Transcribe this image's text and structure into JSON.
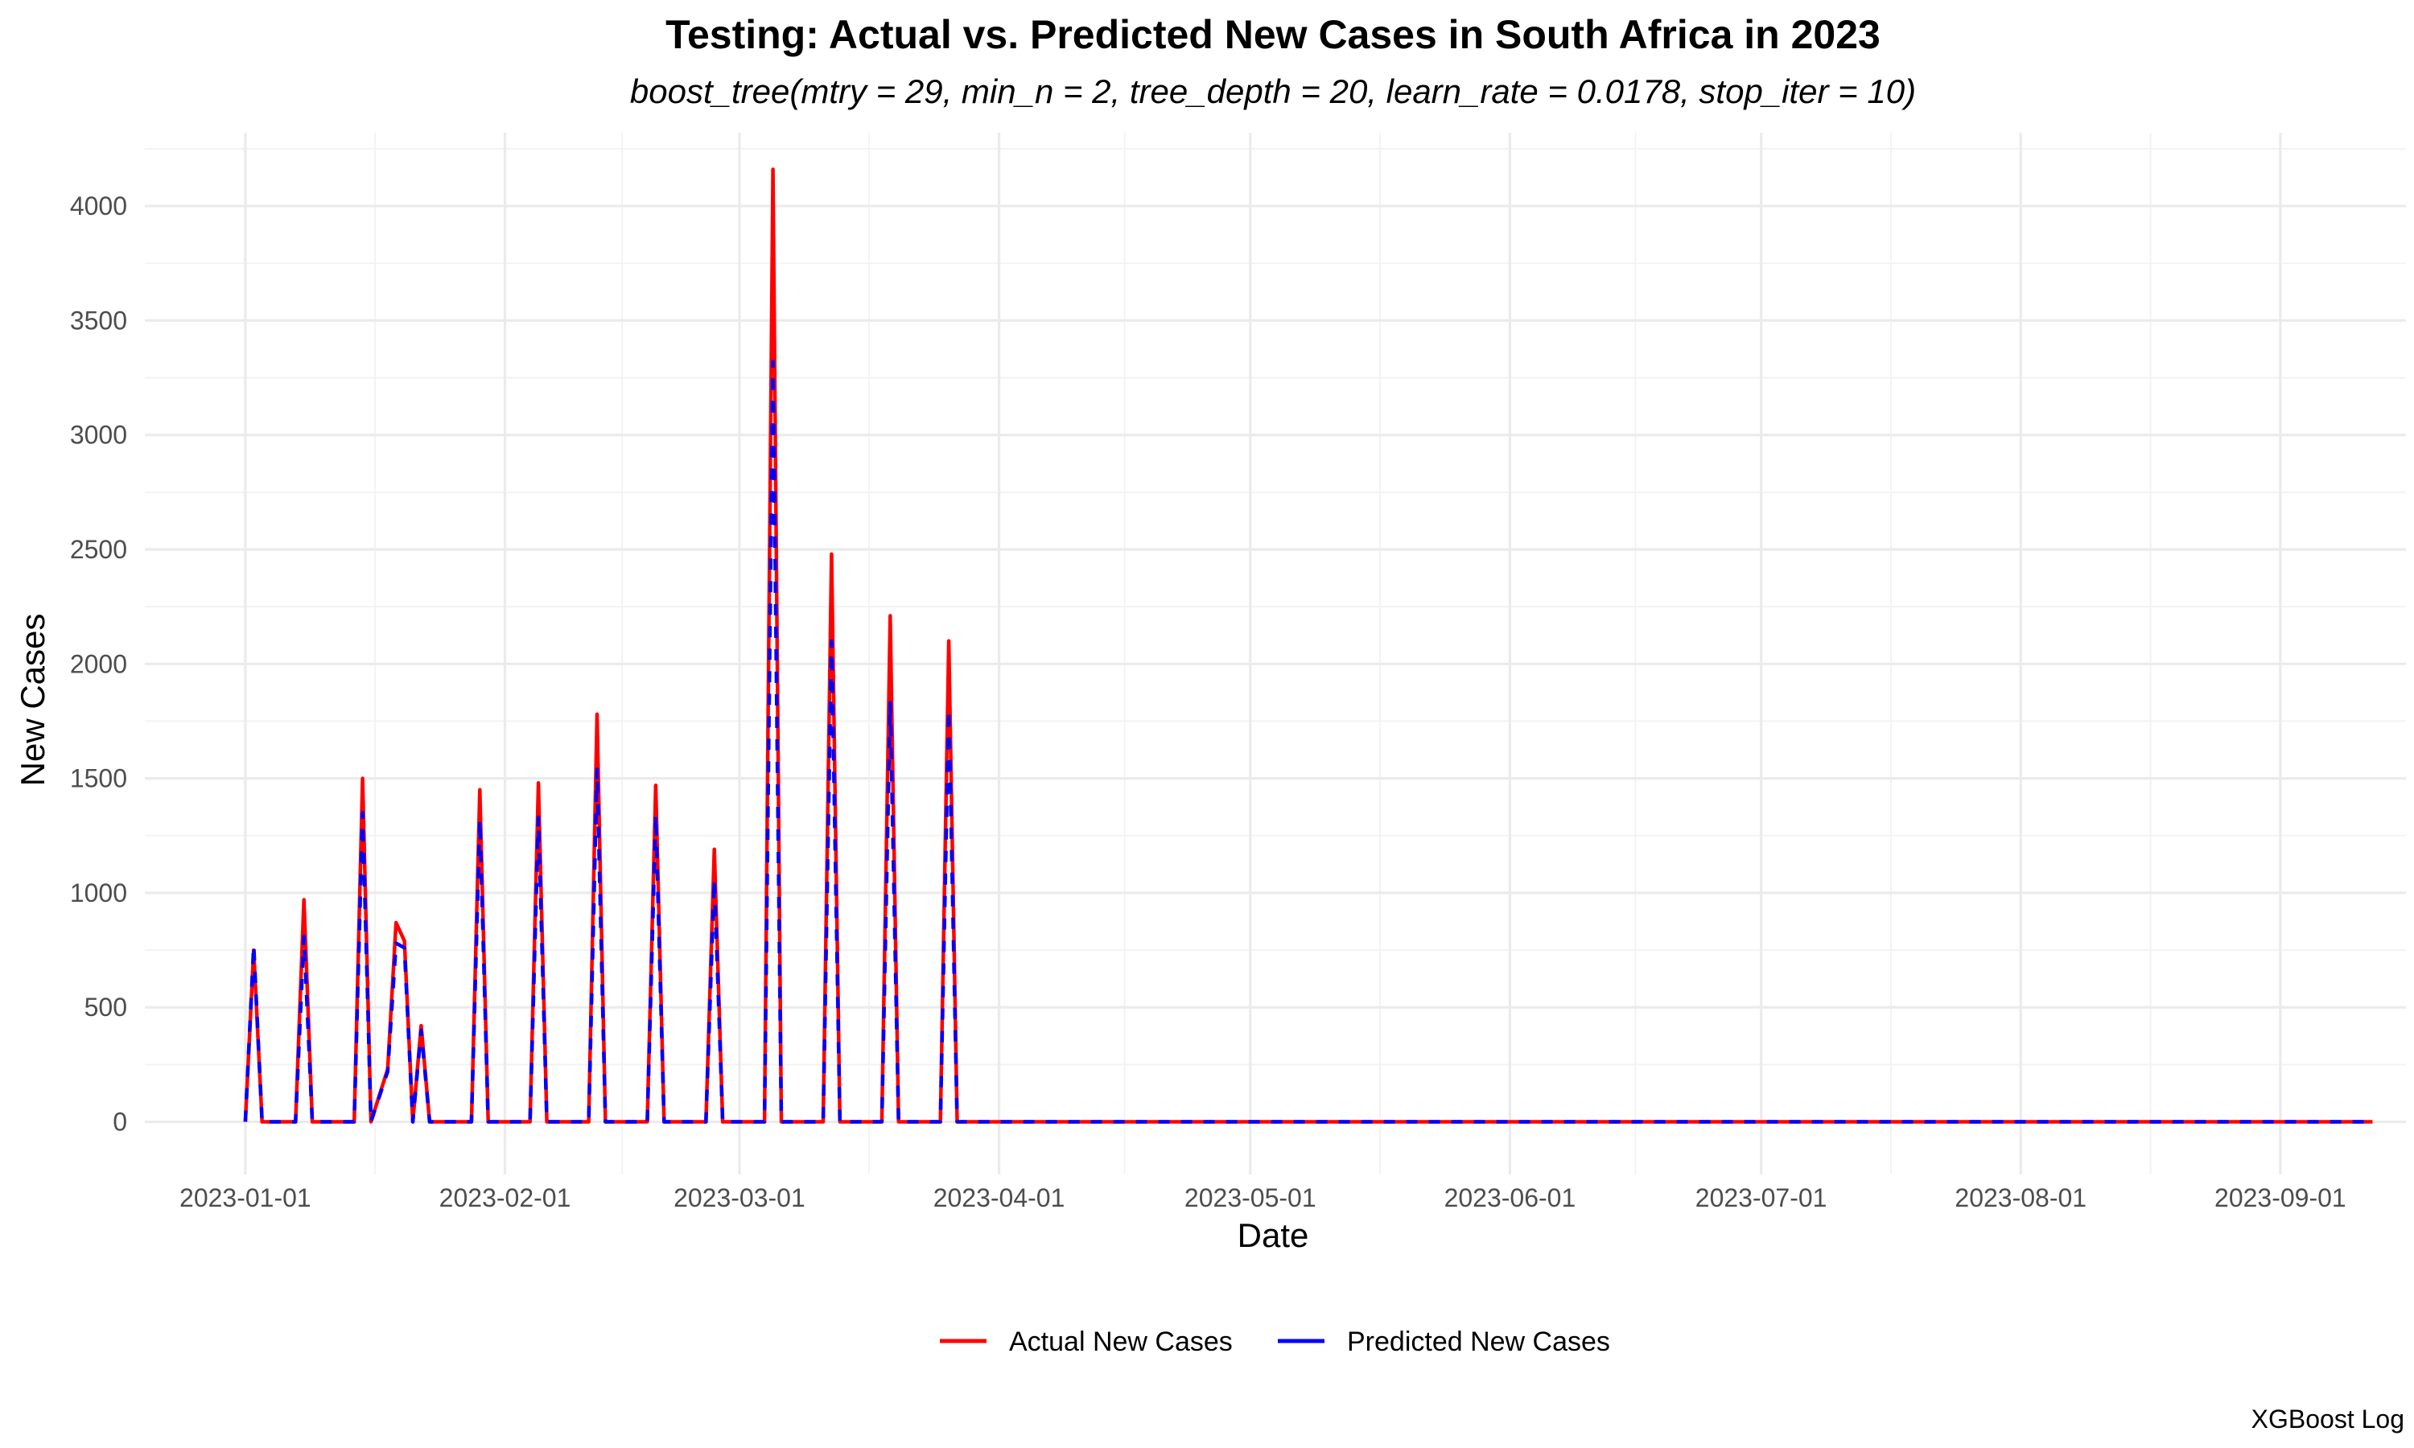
{
  "chart_data": {
    "type": "line",
    "title": "Testing: Actual vs. Predicted New Cases in South Africa in 2023",
    "subtitle": "boost_tree(mtry = 29, min_n = 2, tree_depth = 20, learn_rate = 0.0178, stop_iter = 10)",
    "xlabel": "Date",
    "ylabel": "New Cases",
    "caption": "XGBoost Log",
    "x_ticks": [
      "2023-01-01",
      "2023-02-01",
      "2023-03-01",
      "2023-04-01",
      "2023-05-01",
      "2023-06-01",
      "2023-07-01",
      "2023-08-01",
      "2023-09-01"
    ],
    "y_ticks": [
      0,
      500,
      1000,
      1500,
      2000,
      2500,
      3000,
      3500,
      4000
    ],
    "xlim": [
      "2022-12-20",
      "2023-09-16"
    ],
    "ylim": [
      -230,
      4320
    ],
    "grid": true,
    "legend_position": "bottom",
    "colors": {
      "actual": "#ff0000",
      "predicted": "#0000ff"
    },
    "series": [
      {
        "name": "Actual New Cases",
        "color": "#ff0000",
        "linetype": "solid",
        "points": [
          [
            "2023-01-01",
            0
          ],
          [
            "2023-01-02",
            750
          ],
          [
            "2023-01-03",
            0
          ],
          [
            "2023-01-07",
            0
          ],
          [
            "2023-01-08",
            970
          ],
          [
            "2023-01-09",
            0
          ],
          [
            "2023-01-14",
            0
          ],
          [
            "2023-01-15",
            1500
          ],
          [
            "2023-01-16",
            0
          ],
          [
            "2023-01-18",
            230
          ],
          [
            "2023-01-19",
            870
          ],
          [
            "2023-01-20",
            790
          ],
          [
            "2023-01-21",
            0
          ],
          [
            "2023-01-22",
            420
          ],
          [
            "2023-01-23",
            0
          ],
          [
            "2023-01-28",
            0
          ],
          [
            "2023-01-29",
            1450
          ],
          [
            "2023-01-30",
            0
          ],
          [
            "2023-02-04",
            0
          ],
          [
            "2023-02-05",
            1480
          ],
          [
            "2023-02-06",
            0
          ],
          [
            "2023-02-11",
            0
          ],
          [
            "2023-02-12",
            1780
          ],
          [
            "2023-02-13",
            0
          ],
          [
            "2023-02-18",
            0
          ],
          [
            "2023-02-19",
            1470
          ],
          [
            "2023-02-20",
            0
          ],
          [
            "2023-02-25",
            0
          ],
          [
            "2023-02-26",
            1190
          ],
          [
            "2023-02-27",
            0
          ],
          [
            "2023-03-04",
            0
          ],
          [
            "2023-03-05",
            4160
          ],
          [
            "2023-03-06",
            0
          ],
          [
            "2023-03-11",
            0
          ],
          [
            "2023-03-12",
            2480
          ],
          [
            "2023-03-13",
            0
          ],
          [
            "2023-03-18",
            0
          ],
          [
            "2023-03-19",
            2210
          ],
          [
            "2023-03-20",
            0
          ],
          [
            "2023-03-25",
            0
          ],
          [
            "2023-03-26",
            2100
          ],
          [
            "2023-03-27",
            0
          ],
          [
            "2023-09-12",
            0
          ]
        ]
      },
      {
        "name": "Predicted New Cases",
        "color": "#0000ff",
        "linetype": "dashed",
        "points": [
          [
            "2023-01-01",
            0
          ],
          [
            "2023-01-02",
            770
          ],
          [
            "2023-01-03",
            0
          ],
          [
            "2023-01-07",
            0
          ],
          [
            "2023-01-08",
            810
          ],
          [
            "2023-01-09",
            0
          ],
          [
            "2023-01-14",
            0
          ],
          [
            "2023-01-15",
            1350
          ],
          [
            "2023-01-16",
            0
          ],
          [
            "2023-01-18",
            220
          ],
          [
            "2023-01-19",
            780
          ],
          [
            "2023-01-20",
            760
          ],
          [
            "2023-01-21",
            0
          ],
          [
            "2023-01-22",
            400
          ],
          [
            "2023-01-23",
            0
          ],
          [
            "2023-01-28",
            0
          ],
          [
            "2023-01-29",
            1320
          ],
          [
            "2023-01-30",
            0
          ],
          [
            "2023-02-04",
            0
          ],
          [
            "2023-02-05",
            1330
          ],
          [
            "2023-02-06",
            0
          ],
          [
            "2023-02-11",
            0
          ],
          [
            "2023-02-12",
            1540
          ],
          [
            "2023-02-13",
            0
          ],
          [
            "2023-02-18",
            0
          ],
          [
            "2023-02-19",
            1340
          ],
          [
            "2023-02-20",
            0
          ],
          [
            "2023-02-25",
            0
          ],
          [
            "2023-02-26",
            1060
          ],
          [
            "2023-02-27",
            0
          ],
          [
            "2023-03-04",
            0
          ],
          [
            "2023-03-05",
            3320
          ],
          [
            "2023-03-06",
            0
          ],
          [
            "2023-03-11",
            0
          ],
          [
            "2023-03-12",
            2100
          ],
          [
            "2023-03-13",
            0
          ],
          [
            "2023-03-18",
            0
          ],
          [
            "2023-03-19",
            1830
          ],
          [
            "2023-03-20",
            0
          ],
          [
            "2023-03-25",
            0
          ],
          [
            "2023-03-26",
            1800
          ],
          [
            "2023-03-27",
            0
          ],
          [
            "2023-09-12",
            0
          ]
        ]
      }
    ]
  }
}
